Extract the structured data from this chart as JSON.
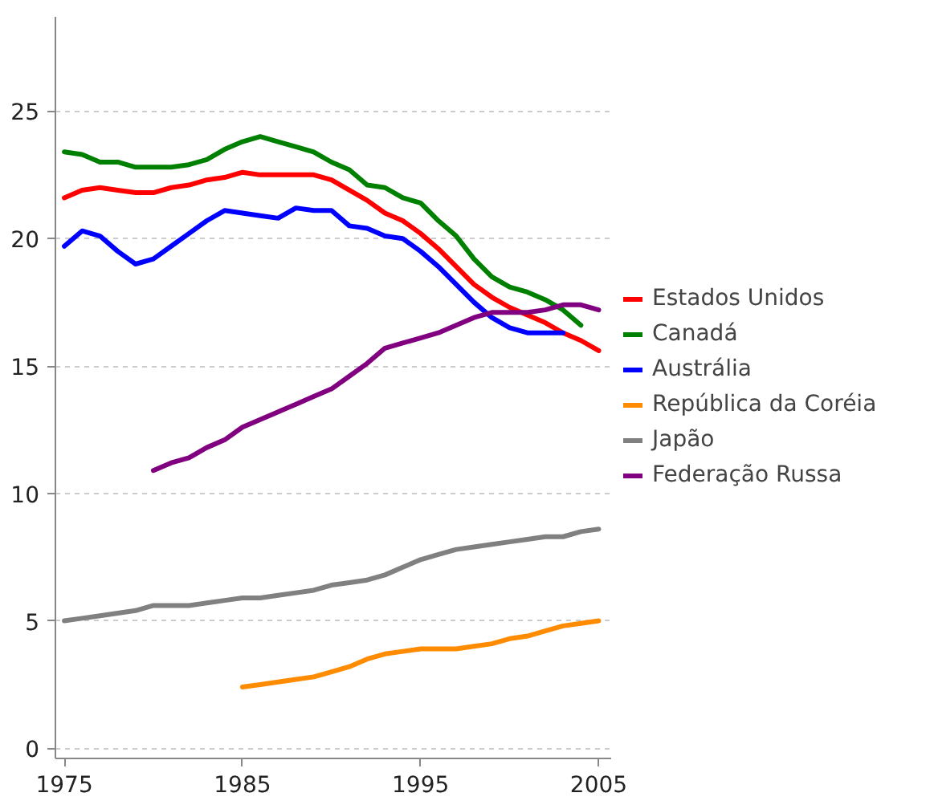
{
  "chart_data": {
    "type": "line",
    "xlim": [
      1974.5,
      2005.7
    ],
    "ylim": [
      -0.4,
      28.7
    ],
    "xticks": [
      1975,
      1985,
      1995,
      2005
    ],
    "yticks": [
      0,
      5,
      10,
      15,
      20,
      25
    ],
    "grid": "y",
    "legend": "right",
    "marker": "none",
    "line_style": "solid",
    "series": [
      {
        "name": "Estados Unidos",
        "color": "#ff0000",
        "x": [
          1975,
          1976,
          1977,
          1978,
          1979,
          1980,
          1981,
          1982,
          1983,
          1984,
          1985,
          1986,
          1987,
          1988,
          1989,
          1990,
          1991,
          1992,
          1993,
          1994,
          1995,
          1996,
          1997,
          1998,
          1999,
          2000,
          2001,
          2002,
          2003,
          2004,
          2005
        ],
        "values": [
          21.6,
          21.9,
          22.0,
          21.9,
          21.8,
          21.8,
          22.0,
          22.1,
          22.3,
          22.4,
          22.6,
          22.5,
          22.5,
          22.5,
          22.5,
          22.3,
          21.9,
          21.5,
          21.0,
          20.7,
          20.2,
          19.6,
          18.9,
          18.2,
          17.7,
          17.3,
          17.0,
          16.7,
          16.3,
          16.0,
          15.6
        ]
      },
      {
        "name": "Canadá",
        "color": "#008000",
        "x": [
          1975,
          1976,
          1977,
          1978,
          1979,
          1980,
          1981,
          1982,
          1983,
          1984,
          1985,
          1986,
          1987,
          1988,
          1989,
          1990,
          1991,
          1992,
          1993,
          1994,
          1995,
          1996,
          1997,
          1998,
          1999,
          2000,
          2001,
          2002,
          2003,
          2004
        ],
        "values": [
          23.4,
          23.3,
          23.0,
          23.0,
          22.8,
          22.8,
          22.8,
          22.9,
          23.1,
          23.5,
          23.8,
          24.0,
          23.8,
          23.6,
          23.4,
          23.0,
          22.7,
          22.1,
          22.0,
          21.6,
          21.4,
          20.7,
          20.1,
          19.2,
          18.5,
          18.1,
          17.9,
          17.6,
          17.2,
          16.6
        ]
      },
      {
        "name": "Austrália",
        "color": "#0000ff",
        "x": [
          1975,
          1976,
          1977,
          1978,
          1979,
          1980,
          1981,
          1982,
          1983,
          1984,
          1985,
          1986,
          1987,
          1988,
          1989,
          1990,
          1991,
          1992,
          1993,
          1994,
          1995,
          1996,
          1997,
          1998,
          1999,
          2000,
          2001,
          2002,
          2003
        ],
        "values": [
          19.7,
          20.3,
          20.1,
          19.5,
          19.0,
          19.2,
          19.7,
          20.2,
          20.7,
          21.1,
          21.0,
          20.9,
          20.8,
          21.2,
          21.1,
          21.1,
          20.5,
          20.4,
          20.1,
          20.0,
          19.5,
          18.9,
          18.2,
          17.5,
          16.9,
          16.5,
          16.3,
          16.3,
          16.3
        ]
      },
      {
        "name": "República da Coréia",
        "color": "#ff8c00",
        "x": [
          1985,
          1986,
          1987,
          1988,
          1989,
          1990,
          1991,
          1992,
          1993,
          1994,
          1995,
          1996,
          1997,
          1998,
          1999,
          2000,
          2001,
          2002,
          2003,
          2004,
          2005
        ],
        "values": [
          2.4,
          2.5,
          2.6,
          2.7,
          2.8,
          3.0,
          3.2,
          3.5,
          3.7,
          3.8,
          3.9,
          3.9,
          3.9,
          4.0,
          4.1,
          4.3,
          4.4,
          4.6,
          4.8,
          4.9,
          5.0
        ]
      },
      {
        "name": "Japão",
        "color": "#808080",
        "x": [
          1975,
          1976,
          1977,
          1978,
          1979,
          1980,
          1981,
          1982,
          1983,
          1984,
          1985,
          1986,
          1987,
          1988,
          1989,
          1990,
          1991,
          1992,
          1993,
          1994,
          1995,
          1996,
          1997,
          1998,
          1999,
          2000,
          2001,
          2002,
          2003,
          2004,
          2005
        ],
        "values": [
          5.0,
          5.1,
          5.2,
          5.3,
          5.4,
          5.6,
          5.6,
          5.6,
          5.7,
          5.8,
          5.9,
          5.9,
          6.0,
          6.1,
          6.2,
          6.4,
          6.5,
          6.6,
          6.8,
          7.1,
          7.4,
          7.6,
          7.8,
          7.9,
          8.0,
          8.1,
          8.2,
          8.3,
          8.3,
          8.5,
          8.6
        ]
      },
      {
        "name": "Federação Russa",
        "color": "#800080",
        "x": [
          1980,
          1981,
          1982,
          1983,
          1984,
          1985,
          1986,
          1987,
          1988,
          1989,
          1990,
          1991,
          1992,
          1993,
          1994,
          1995,
          1996,
          1997,
          1998,
          1999,
          2000,
          2001,
          2002,
          2003,
          2004,
          2005
        ],
        "values": [
          10.9,
          11.2,
          11.4,
          11.8,
          12.1,
          12.6,
          12.9,
          13.2,
          13.5,
          13.8,
          14.1,
          14.6,
          15.1,
          15.7,
          15.9,
          16.1,
          16.3,
          16.6,
          16.9,
          17.1,
          17.1,
          17.1,
          17.2,
          17.4,
          17.4,
          17.2
        ]
      }
    ]
  }
}
